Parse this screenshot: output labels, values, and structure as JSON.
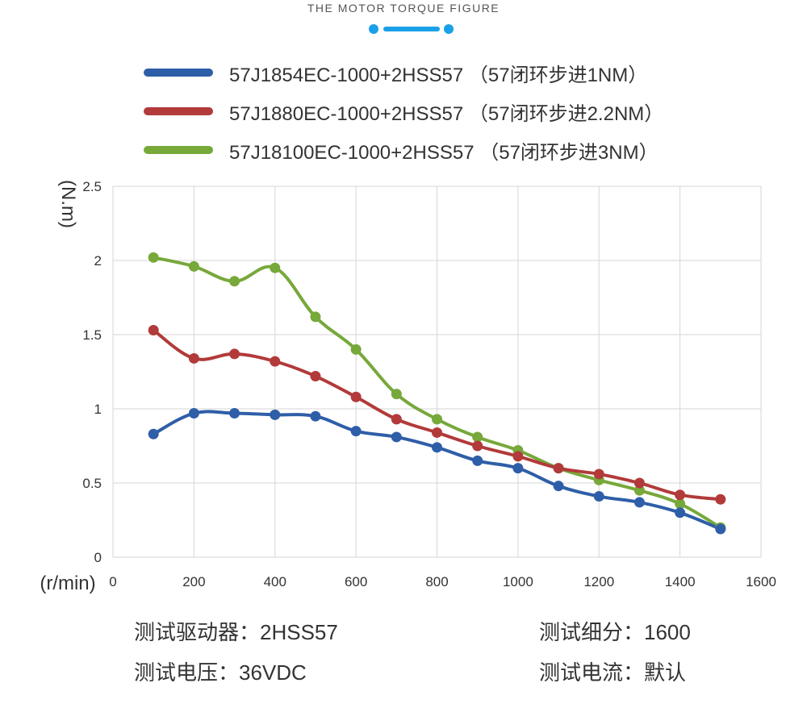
{
  "header": {
    "title": "THE MOTOR TORQUE FIGURE",
    "accent_color": "#1aa0e8"
  },
  "chart_data": {
    "type": "line",
    "title": "",
    "xlabel": "(r/min)",
    "ylabel": "(N.m)",
    "xlim": [
      0,
      1600
    ],
    "ylim": [
      0,
      2.5
    ],
    "x_ticks": [
      "0",
      "200",
      "400",
      "600",
      "800",
      "1000",
      "1200",
      "1400",
      "1600"
    ],
    "y_ticks": [
      "0",
      "0.5",
      "1",
      "1.5",
      "2",
      "2.5"
    ],
    "grid": true,
    "legend_position": "top",
    "x": [
      100,
      200,
      300,
      400,
      500,
      600,
      700,
      800,
      900,
      1000,
      1100,
      1200,
      1300,
      1400,
      1500
    ],
    "series": [
      {
        "name": "57J1854EC-1000+2HSS57 （57闭环步进1NM）",
        "color": "#2f5ea8",
        "values": [
          0.83,
          0.97,
          0.97,
          0.96,
          0.95,
          0.85,
          0.81,
          0.74,
          0.65,
          0.6,
          0.48,
          0.41,
          0.37,
          0.3,
          0.19
        ]
      },
      {
        "name": "57J1880EC-1000+2HSS57 （57闭环步进2.2NM）",
        "color": "#b23a3a",
        "values": [
          1.53,
          1.34,
          1.37,
          1.32,
          1.22,
          1.08,
          0.93,
          0.84,
          0.75,
          0.68,
          0.6,
          0.56,
          0.5,
          0.42,
          0.39
        ]
      },
      {
        "name": "57J18100EC-1000+2HSS57 （57闭环步进3NM）",
        "color": "#77a83a",
        "values": [
          2.02,
          1.96,
          1.86,
          1.95,
          1.62,
          1.4,
          1.1,
          0.93,
          0.81,
          0.72,
          0.6,
          0.52,
          0.45,
          0.36,
          0.2
        ]
      }
    ]
  },
  "footer": {
    "driver": "测试驱动器：2HSS57",
    "subdivision": "测试细分：1600",
    "voltage": "测试电压：36VDC",
    "current": "测试电流：默认"
  }
}
